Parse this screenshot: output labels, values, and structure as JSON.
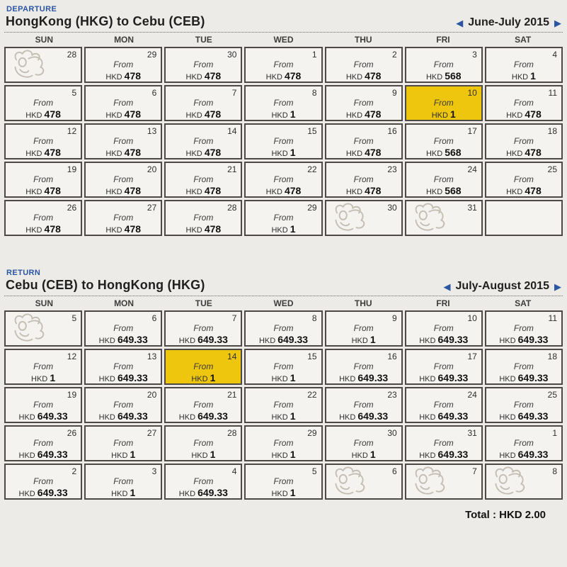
{
  "colors": {
    "accent_blue": "#2b55a2",
    "selected_yellow": "#eec60e",
    "page_bg": "#ecebe7",
    "cell_bg": "#f5f3f0",
    "cell_border": "#4e4944"
  },
  "from_label": "From",
  "currency": "HKD",
  "total_label": "Total : HKD 2.00",
  "nav": {
    "prev": "◀",
    "next": "▶"
  },
  "calendars": [
    {
      "section_label": "DEPARTURE",
      "title": "HongKong (HKG) to Cebu (CEB)",
      "month_label": "June-July 2015",
      "day_headers": [
        "SUN",
        "MON",
        "TUE",
        "WED",
        "THU",
        "FRI",
        "SAT"
      ],
      "weeks": [
        [
          {
            "day": "28",
            "mascot": true
          },
          {
            "day": "29",
            "price": "478"
          },
          {
            "day": "30",
            "price": "478"
          },
          {
            "day": "1",
            "price": "478"
          },
          {
            "day": "2",
            "price": "478"
          },
          {
            "day": "3",
            "price": "568"
          },
          {
            "day": "4",
            "price": "1"
          }
        ],
        [
          {
            "day": "5",
            "price": "478"
          },
          {
            "day": "6",
            "price": "478"
          },
          {
            "day": "7",
            "price": "478"
          },
          {
            "day": "8",
            "price": "1"
          },
          {
            "day": "9",
            "price": "478"
          },
          {
            "day": "10",
            "price": "1",
            "selected": true
          },
          {
            "day": "11",
            "price": "478"
          }
        ],
        [
          {
            "day": "12",
            "price": "478"
          },
          {
            "day": "13",
            "price": "478"
          },
          {
            "day": "14",
            "price": "478"
          },
          {
            "day": "15",
            "price": "1"
          },
          {
            "day": "16",
            "price": "478"
          },
          {
            "day": "17",
            "price": "568"
          },
          {
            "day": "18",
            "price": "478"
          }
        ],
        [
          {
            "day": "19",
            "price": "478"
          },
          {
            "day": "20",
            "price": "478"
          },
          {
            "day": "21",
            "price": "478"
          },
          {
            "day": "22",
            "price": "478"
          },
          {
            "day": "23",
            "price": "478"
          },
          {
            "day": "24",
            "price": "568"
          },
          {
            "day": "25",
            "price": "478"
          }
        ],
        [
          {
            "day": "26",
            "price": "478"
          },
          {
            "day": "27",
            "price": "478"
          },
          {
            "day": "28",
            "price": "478"
          },
          {
            "day": "29",
            "price": "1"
          },
          {
            "day": "30",
            "mascot": true
          },
          {
            "day": "31",
            "mascot": true
          },
          {
            "empty": true
          }
        ]
      ]
    },
    {
      "section_label": "RETURN",
      "title": "Cebu (CEB) to HongKong (HKG)",
      "month_label": "July-August 2015",
      "day_headers": [
        "SUN",
        "MON",
        "TUE",
        "WED",
        "THU",
        "FRI",
        "SAT"
      ],
      "weeks": [
        [
          {
            "day": "5",
            "mascot": true
          },
          {
            "day": "6",
            "price": "649.33"
          },
          {
            "day": "7",
            "price": "649.33"
          },
          {
            "day": "8",
            "price": "649.33"
          },
          {
            "day": "9",
            "price": "1"
          },
          {
            "day": "10",
            "price": "649.33"
          },
          {
            "day": "11",
            "price": "649.33"
          }
        ],
        [
          {
            "day": "12",
            "price": "1"
          },
          {
            "day": "13",
            "price": "649.33"
          },
          {
            "day": "14",
            "price": "1",
            "selected": true
          },
          {
            "day": "15",
            "price": "1"
          },
          {
            "day": "16",
            "price": "649.33"
          },
          {
            "day": "17",
            "price": "649.33"
          },
          {
            "day": "18",
            "price": "649.33"
          }
        ],
        [
          {
            "day": "19",
            "price": "649.33"
          },
          {
            "day": "20",
            "price": "649.33"
          },
          {
            "day": "21",
            "price": "649.33"
          },
          {
            "day": "22",
            "price": "1"
          },
          {
            "day": "23",
            "price": "649.33"
          },
          {
            "day": "24",
            "price": "649.33"
          },
          {
            "day": "25",
            "price": "649.33"
          }
        ],
        [
          {
            "day": "26",
            "price": "649.33"
          },
          {
            "day": "27",
            "price": "1"
          },
          {
            "day": "28",
            "price": "1"
          },
          {
            "day": "29",
            "price": "1"
          },
          {
            "day": "30",
            "price": "1"
          },
          {
            "day": "31",
            "price": "649.33"
          },
          {
            "day": "1",
            "price": "649.33"
          }
        ],
        [
          {
            "day": "2",
            "price": "649.33"
          },
          {
            "day": "3",
            "price": "1"
          },
          {
            "day": "4",
            "price": "649.33"
          },
          {
            "day": "5",
            "price": "1"
          },
          {
            "day": "6",
            "mascot": true
          },
          {
            "day": "7",
            "mascot": true
          },
          {
            "day": "8",
            "mascot": true
          }
        ]
      ]
    }
  ]
}
